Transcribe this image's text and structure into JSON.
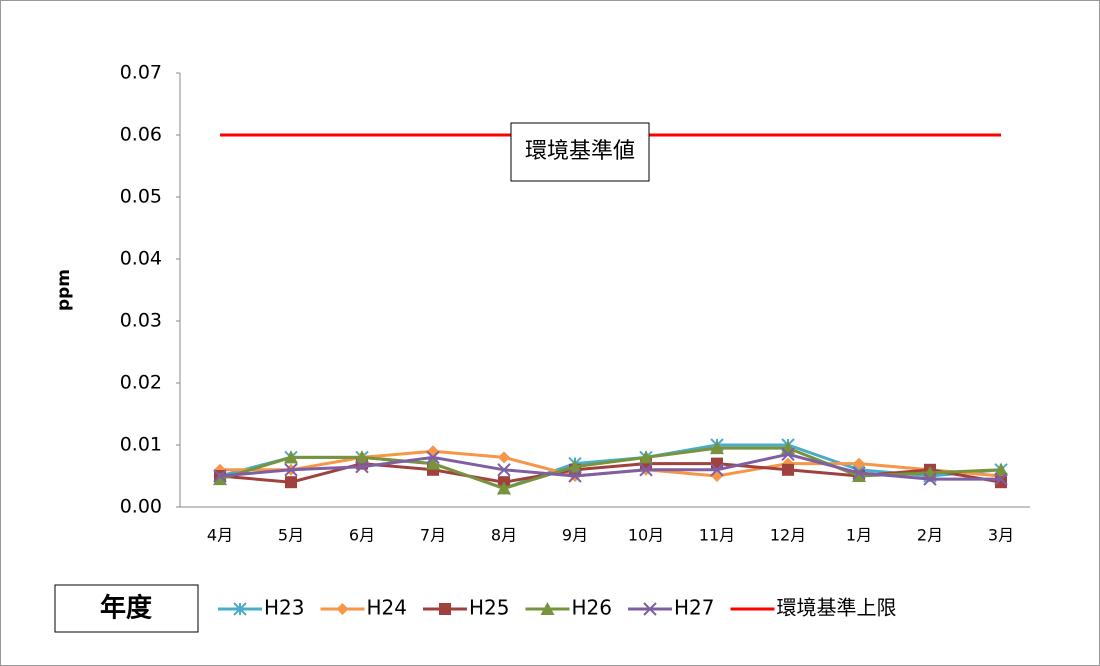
{
  "chart_data": {
    "type": "line",
    "y_label": "ppm",
    "annotation": "環境基準値",
    "legend_title": "年度",
    "categories": [
      "4月",
      "5月",
      "6月",
      "7月",
      "8月",
      "9月",
      "10月",
      "11月",
      "12月",
      "1月",
      "2月",
      "3月"
    ],
    "series": [
      {
        "name": "H23",
        "color": "#4bacc6",
        "marker": "star",
        "values": [
          0.005,
          0.008,
          0.008,
          0.007,
          0.003,
          0.007,
          0.008,
          0.01,
          0.01,
          0.006,
          0.005,
          0.006
        ]
      },
      {
        "name": "H24",
        "color": "#f79646",
        "marker": "diamond",
        "values": [
          0.006,
          0.006,
          0.008,
          0.009,
          0.008,
          0.005,
          0.006,
          0.005,
          0.007,
          0.007,
          0.006,
          0.005
        ]
      },
      {
        "name": "H25",
        "color": "#a0413d",
        "marker": "square",
        "values": [
          0.005,
          0.004,
          0.007,
          0.006,
          0.004,
          0.006,
          0.007,
          0.007,
          0.006,
          0.005,
          0.006,
          0.004
        ]
      },
      {
        "name": "H26",
        "color": "#77933c",
        "marker": "triangle",
        "values": [
          0.0045,
          0.008,
          0.008,
          0.007,
          0.003,
          0.0065,
          0.008,
          0.0095,
          0.0095,
          0.005,
          0.0055,
          0.006
        ]
      },
      {
        "name": "H27",
        "color": "#7f5fa3",
        "marker": "x",
        "values": [
          0.005,
          0.006,
          0.0065,
          0.008,
          0.006,
          0.005,
          0.006,
          0.006,
          0.0085,
          0.0055,
          0.0045,
          0.0045
        ]
      },
      {
        "name": "環境基準上限",
        "color": "#ff0000",
        "marker": "none",
        "values": [
          0.06,
          0.06,
          0.06,
          0.06,
          0.06,
          0.06,
          0.06,
          0.06,
          0.06,
          0.06,
          0.06,
          0.06
        ]
      }
    ],
    "ylim": [
      0,
      0.07
    ],
    "yticks": [
      {
        "value": 0,
        "label": "0.00"
      },
      0.01,
      0.02,
      0.03,
      0.04,
      0.05,
      0.06,
      0.07
    ],
    "grid": false
  }
}
